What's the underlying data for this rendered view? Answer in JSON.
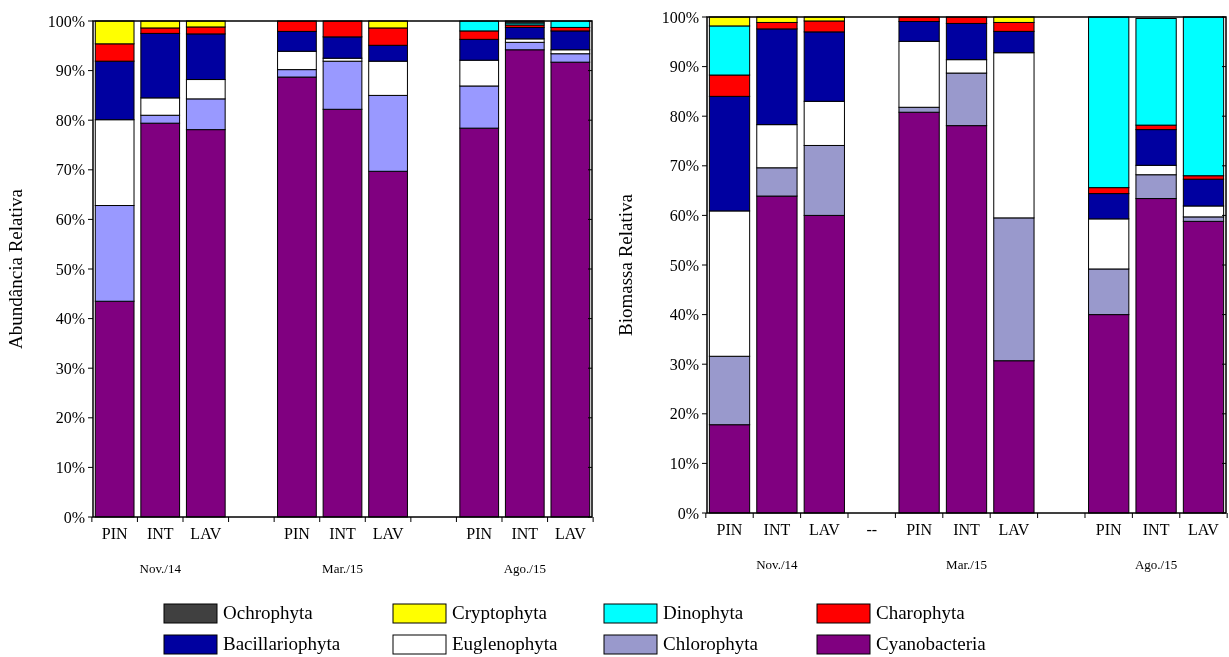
{
  "chart_data": [
    {
      "type": "bar",
      "stacked": true,
      "ylabel": "Abundância Relativa",
      "categories": [
        "PIN",
        "INT",
        "LAV",
        null,
        "PIN",
        "INT",
        "LAV",
        null,
        "PIN",
        "INT",
        "LAV"
      ],
      "ylim": [
        0,
        100
      ],
      "yticks": [
        {
          "value": 0,
          "label": "0%"
        },
        {
          "value": 10,
          "label": "10%"
        },
        {
          "value": 20,
          "label": "20%"
        },
        {
          "value": 30,
          "label": "30%"
        },
        {
          "value": 40,
          "label": "40%"
        },
        {
          "value": 50,
          "label": "50%"
        },
        {
          "value": 60,
          "label": "60%"
        },
        {
          "value": 70,
          "label": "70%"
        },
        {
          "value": 80,
          "label": "80%"
        },
        {
          "value": 90,
          "label": "90%"
        },
        {
          "value": 100,
          "label": "100%"
        }
      ],
      "grid": false,
      "annotations": [
        "Nov./14",
        "Mar./15",
        "Ago./15"
      ],
      "series": [
        {
          "color": "#800080",
          "values": [
            43.5,
            79.4,
            78.1,
            null,
            88.7,
            82.2,
            69.7,
            null,
            78.4,
            94.2,
            91.7
          ]
        },
        {
          "color": "#9999ff",
          "values": [
            19.3,
            1.6,
            6.2,
            null,
            1.5,
            9.7,
            15.3,
            null,
            8.5,
            1.5,
            1.7
          ]
        },
        {
          "color": "#ffffff",
          "values": [
            17.3,
            3.5,
            3.9,
            null,
            3.7,
            0.6,
            6.9,
            null,
            5.2,
            0.7,
            0.8
          ]
        },
        {
          "color": "#0000a0",
          "values": [
            11.8,
            13,
            9.2,
            null,
            4,
            4.3,
            3.2,
            null,
            4.2,
            2.3,
            3.8
          ]
        },
        {
          "color": "#ff0000",
          "values": [
            3.5,
            1.1,
            1.4,
            null,
            2.1,
            3.2,
            3.5,
            null,
            1.7,
            0.5,
            0.7
          ]
        },
        {
          "color": "#00ffff",
          "values": [
            0,
            0,
            0,
            null,
            0,
            0,
            0,
            null,
            2,
            0.4,
            1.3
          ]
        },
        {
          "color": "#ffff00",
          "values": [
            4.6,
            1.4,
            1.2,
            null,
            0,
            0,
            1.4,
            null,
            0,
            0,
            0
          ]
        },
        {
          "color": "#404040",
          "values": [
            0,
            0,
            0,
            null,
            0,
            0,
            0,
            null,
            0,
            0.4,
            0
          ]
        }
      ]
    },
    {
      "type": "bar",
      "stacked": true,
      "ylabel": "Biomassa Relativa",
      "categories": [
        "PIN",
        "INT",
        "LAV",
        "--",
        "PIN",
        "INT",
        "LAV",
        null,
        "PIN",
        "INT",
        "LAV"
      ],
      "ylim": [
        0,
        100
      ],
      "yticks": [
        {
          "value": 0,
          "label": "0%"
        },
        {
          "value": 10,
          "label": "10%"
        },
        {
          "value": 20,
          "label": "20%"
        },
        {
          "value": 30,
          "label": "30%"
        },
        {
          "value": 40,
          "label": "40%"
        },
        {
          "value": 50,
          "label": "50%"
        },
        {
          "value": 60,
          "label": "60%"
        },
        {
          "value": 70,
          "label": "70%"
        },
        {
          "value": 80,
          "label": "80%"
        },
        {
          "value": 90,
          "label": "90%"
        },
        {
          "value": 100,
          "label": "100%"
        }
      ],
      "grid": false,
      "legend": "bottom",
      "annotations": [
        "Nov./14",
        "Mar./15",
        "Ago./15"
      ],
      "series": [
        {
          "name": "Cyanobacteria",
          "color": "#800080",
          "values": [
            17.8,
            63.9,
            60,
            null,
            80.8,
            78.1,
            30.7,
            null,
            40,
            63.4,
            58.8
          ]
        },
        {
          "name": "Chlorophyta",
          "color": "#9999cc",
          "values": [
            13.8,
            5.7,
            14.1,
            null,
            1,
            10.6,
            28.8,
            null,
            9.2,
            4.8,
            0.9
          ]
        },
        {
          "name": "Euglenophyta",
          "color": "#ffffff",
          "values": [
            29.3,
            8.7,
            8.9,
            null,
            13.3,
            2.7,
            33.3,
            null,
            10.1,
            1.9,
            2.2
          ]
        },
        {
          "name": "Bacillariophyta",
          "color": "#0000a0",
          "values": [
            23.1,
            19.3,
            14,
            null,
            4,
            7.3,
            4.3,
            null,
            5.1,
            7.2,
            5.4
          ]
        },
        {
          "name": "Charophyta",
          "color": "#ff0000",
          "values": [
            4.3,
            1.3,
            2.2,
            null,
            0.9,
            1.3,
            1.8,
            null,
            1.2,
            0.9,
            0.7
          ]
        },
        {
          "name": "Dinophyta",
          "color": "#00ffff",
          "values": [
            9.9,
            0,
            0,
            null,
            0,
            0,
            0,
            null,
            34.4,
            21.5,
            32
          ]
        },
        {
          "name": "Cryptophyta",
          "color": "#ffff00",
          "values": [
            1.8,
            1.1,
            0.8,
            null,
            0,
            0,
            1.1,
            null,
            0,
            0,
            0
          ]
        },
        {
          "name": "Ochrophyta",
          "color": "#404040",
          "values": [
            0,
            0,
            0,
            null,
            0,
            0,
            0,
            null,
            0,
            null,
            0
          ]
        }
      ]
    }
  ]
}
